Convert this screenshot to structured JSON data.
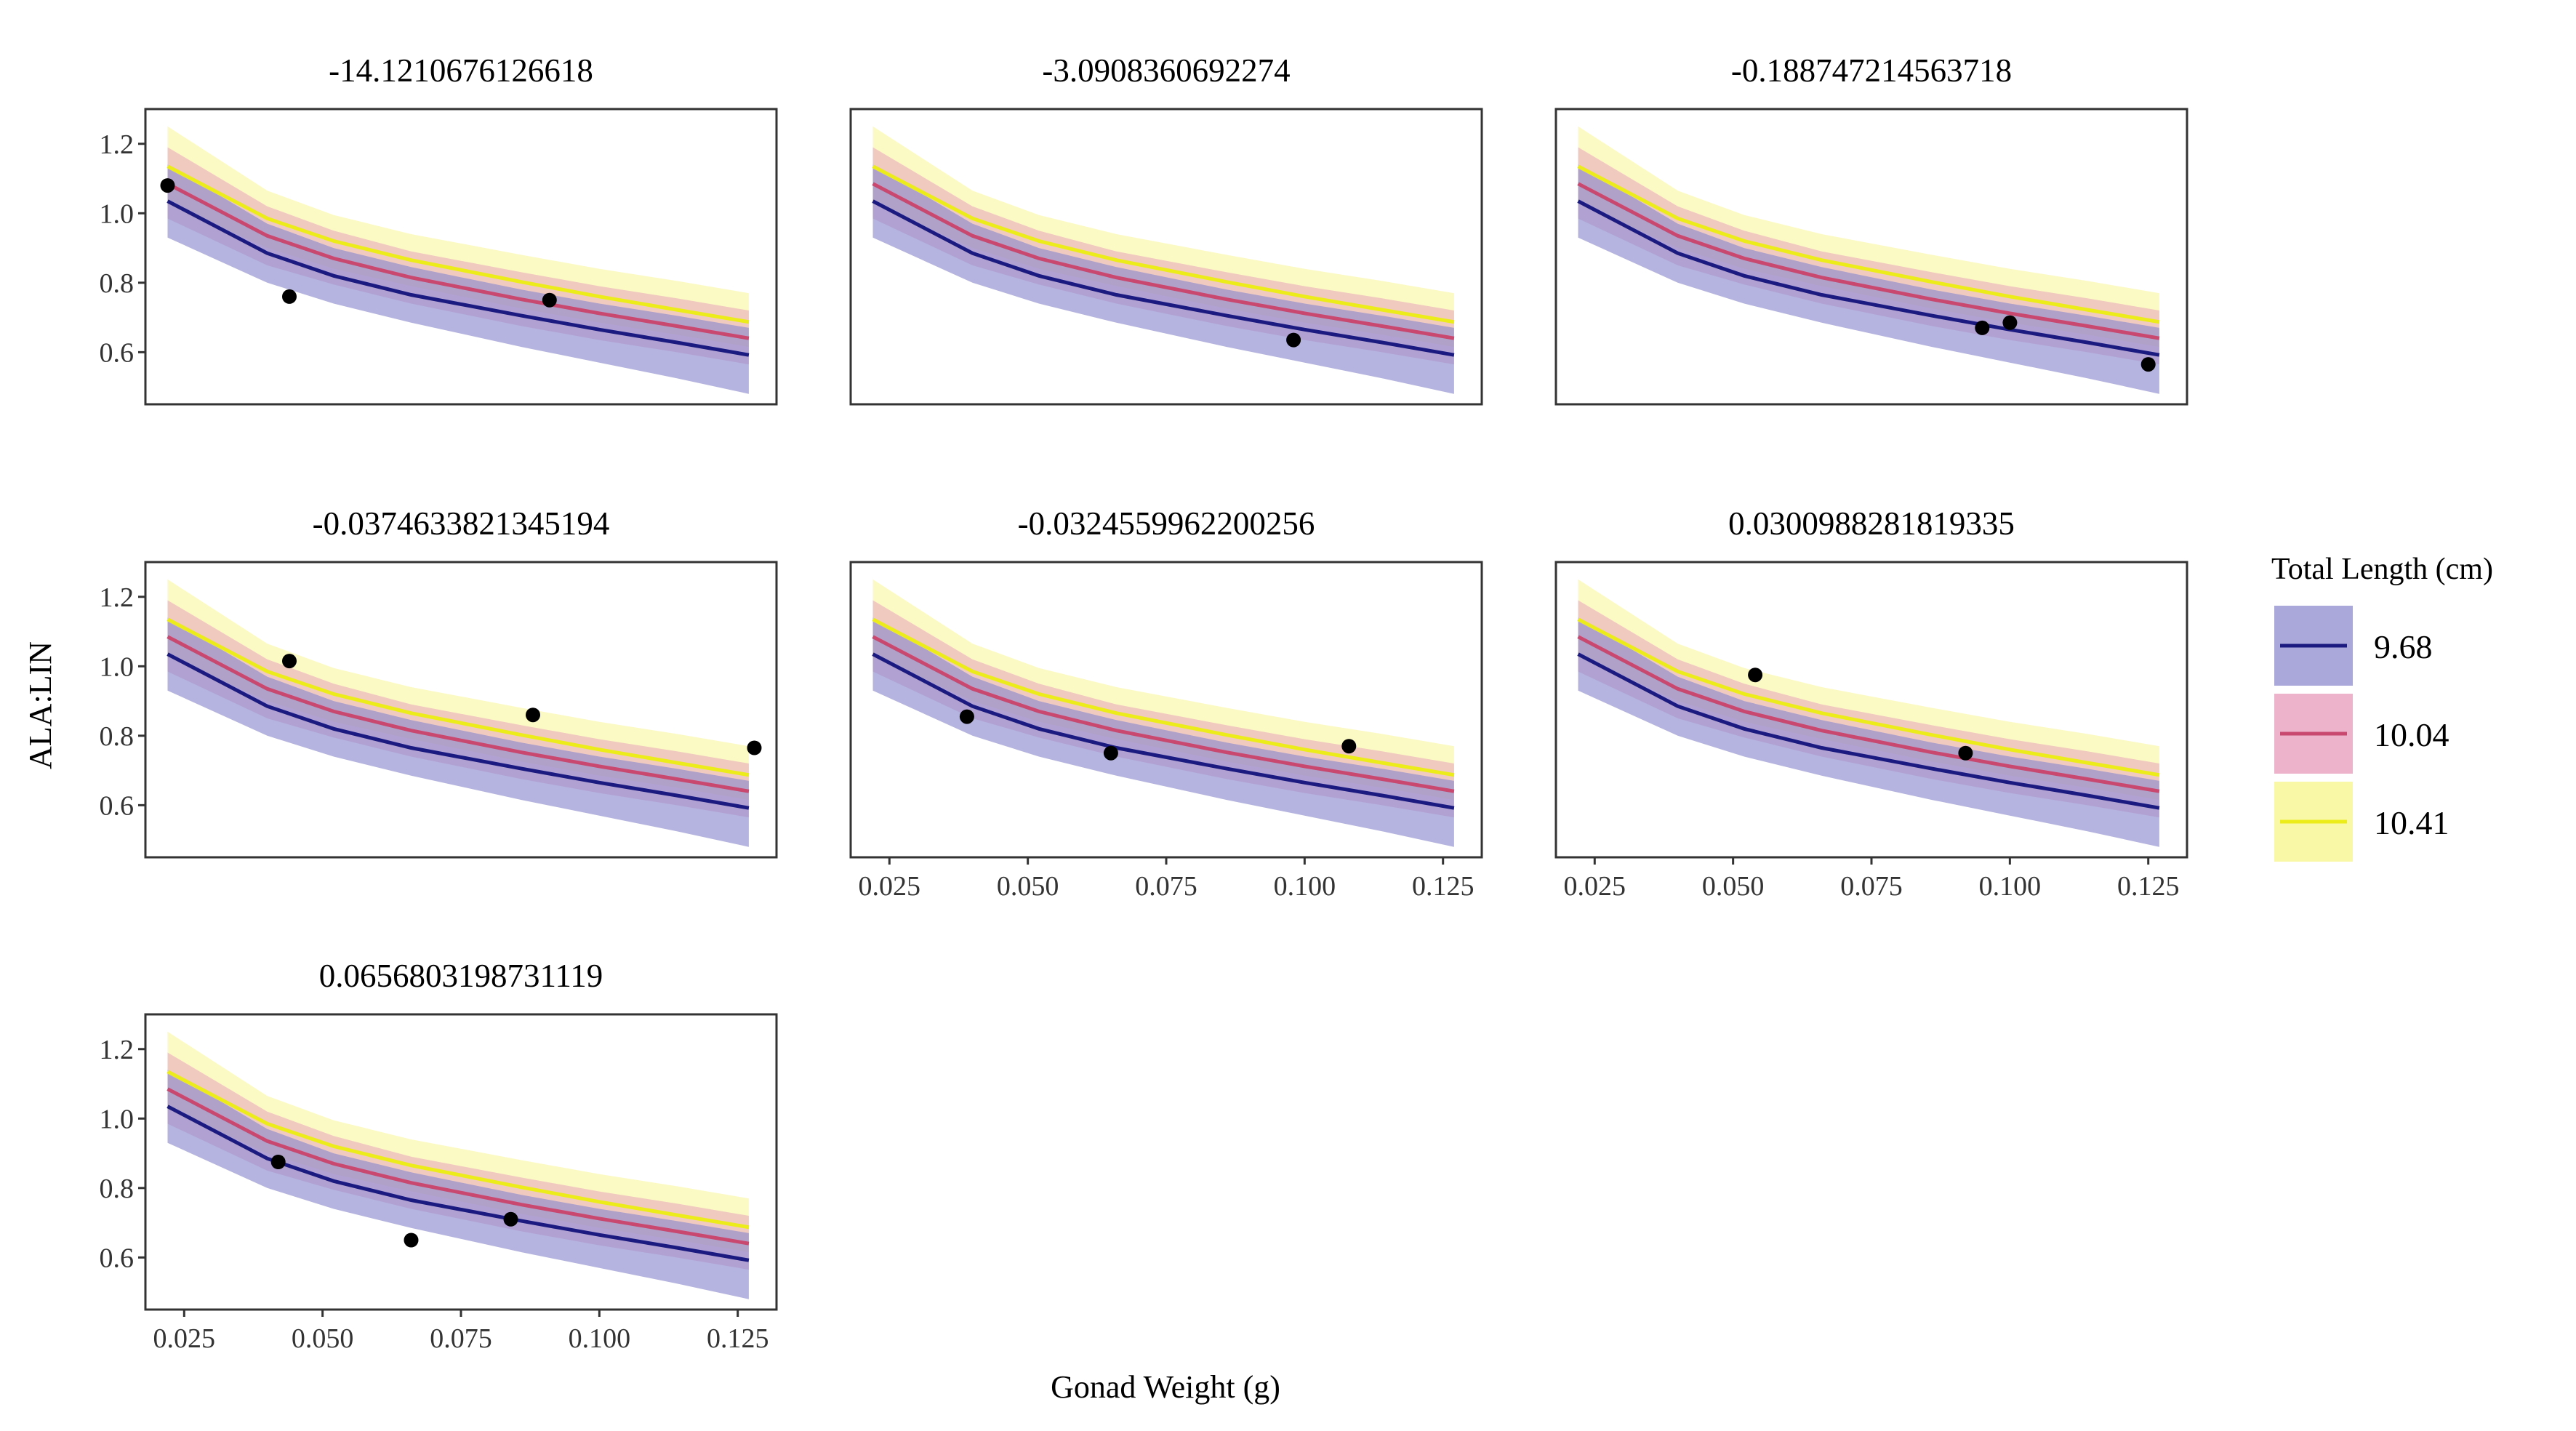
{
  "chart_data": {
    "type": "line",
    "layout": "facet-grid",
    "xlabel": "Gonad Weight (g)",
    "ylabel": "ALA:LIN",
    "xlim": [
      0.018,
      0.132
    ],
    "ylim": [
      0.45,
      1.3
    ],
    "x_ticks": [
      0.025,
      0.05,
      0.075,
      0.1,
      0.125
    ],
    "x_tick_labels": [
      "0.025",
      "0.050",
      "0.075",
      "0.100",
      "0.125"
    ],
    "y_ticks": [
      0.6,
      0.8,
      1.0,
      1.2
    ],
    "y_tick_labels": [
      "0.6",
      "0.8",
      "1.0",
      "1.2"
    ],
    "legend": {
      "title": "Total Length (cm)",
      "position": "right",
      "entries": [
        {
          "label": "9.68",
          "line_color": "#1a1a80",
          "fill_color": "#8e8bcf"
        },
        {
          "label": "10.04",
          "line_color": "#c84870",
          "fill_color": "#e59ab8"
        },
        {
          "label": "10.41",
          "line_color": "#ecec1a",
          "fill_color": "#f7f58a"
        }
      ]
    },
    "curve_x": [
      0.022,
      0.04,
      0.052,
      0.066,
      0.086,
      0.1,
      0.114,
      0.127
    ],
    "series": [
      {
        "name": "9.68",
        "line": [
          1.035,
          0.885,
          0.82,
          0.765,
          0.705,
          0.665,
          0.628,
          0.592
        ],
        "lower": [
          0.93,
          0.8,
          0.74,
          0.685,
          0.615,
          0.57,
          0.525,
          0.48
        ],
        "upper": [
          1.14,
          0.97,
          0.9,
          0.845,
          0.78,
          0.74,
          0.705,
          0.67
        ]
      },
      {
        "name": "10.04",
        "line": [
          1.085,
          0.935,
          0.87,
          0.815,
          0.752,
          0.712,
          0.675,
          0.64
        ],
        "lower": [
          0.985,
          0.85,
          0.795,
          0.74,
          0.675,
          0.635,
          0.6,
          0.565
        ],
        "upper": [
          1.19,
          1.02,
          0.95,
          0.89,
          0.83,
          0.79,
          0.755,
          0.72
        ]
      },
      {
        "name": "10.41",
        "line": [
          1.135,
          0.985,
          0.92,
          0.865,
          0.802,
          0.76,
          0.722,
          0.687
        ],
        "lower": [
          1.03,
          0.9,
          0.84,
          0.79,
          0.725,
          0.685,
          0.65,
          0.615
        ],
        "upper": [
          1.25,
          1.065,
          0.995,
          0.94,
          0.88,
          0.84,
          0.805,
          0.77
        ]
      }
    ],
    "panels": [
      {
        "title": "-14.1210676126618",
        "points": [
          [
            0.022,
            1.08
          ],
          [
            0.044,
            0.76
          ],
          [
            0.091,
            0.75
          ]
        ]
      },
      {
        "title": "-3.0908360692274",
        "points": [
          [
            0.098,
            0.635
          ]
        ]
      },
      {
        "title": "-0.188747214563718",
        "points": [
          [
            0.095,
            0.67
          ],
          [
            0.1,
            0.685
          ],
          [
            0.125,
            0.565
          ]
        ]
      },
      {
        "title": "-0.0374633821345194",
        "points": [
          [
            0.044,
            1.015
          ],
          [
            0.088,
            0.86
          ],
          [
            0.128,
            0.765
          ]
        ]
      },
      {
        "title": "-0.0324559962200256",
        "points": [
          [
            0.039,
            0.855
          ],
          [
            0.065,
            0.75
          ],
          [
            0.108,
            0.77
          ]
        ]
      },
      {
        "title": "0.0300988281819335",
        "points": [
          [
            0.054,
            0.975
          ],
          [
            0.092,
            0.75
          ]
        ]
      },
      {
        "title": "0.0656803198731119",
        "points": [
          [
            0.042,
            0.875
          ],
          [
            0.066,
            0.65
          ],
          [
            0.084,
            0.71
          ]
        ]
      }
    ]
  }
}
